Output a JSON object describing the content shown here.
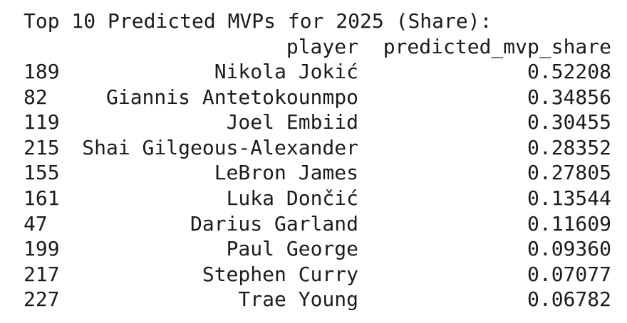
{
  "title": "Top 10 Predicted MVPs for 2025 (Share):",
  "table": {
    "columns": [
      "player",
      "predicted_mvp_share"
    ],
    "rows": [
      [
        "189",
        "Nikola Jokić",
        "0.52208"
      ],
      [
        "82",
        "Giannis Antetokounmpo",
        "0.34856"
      ],
      [
        "119",
        "Joel Embiid",
        "0.30455"
      ],
      [
        "215",
        "Shai Gilgeous-Alexander",
        "0.28352"
      ],
      [
        "155",
        "LeBron James",
        "0.27805"
      ],
      [
        "161",
        "Luka Dončić",
        "0.13544"
      ],
      [
        "47",
        "Darius Garland",
        "0.11609"
      ],
      [
        "199",
        "Paul George",
        "0.09360"
      ],
      [
        "217",
        "Stephen Curry",
        "0.07077"
      ],
      [
        "227",
        "Trae Young",
        "0.06782"
      ]
    ]
  }
}
